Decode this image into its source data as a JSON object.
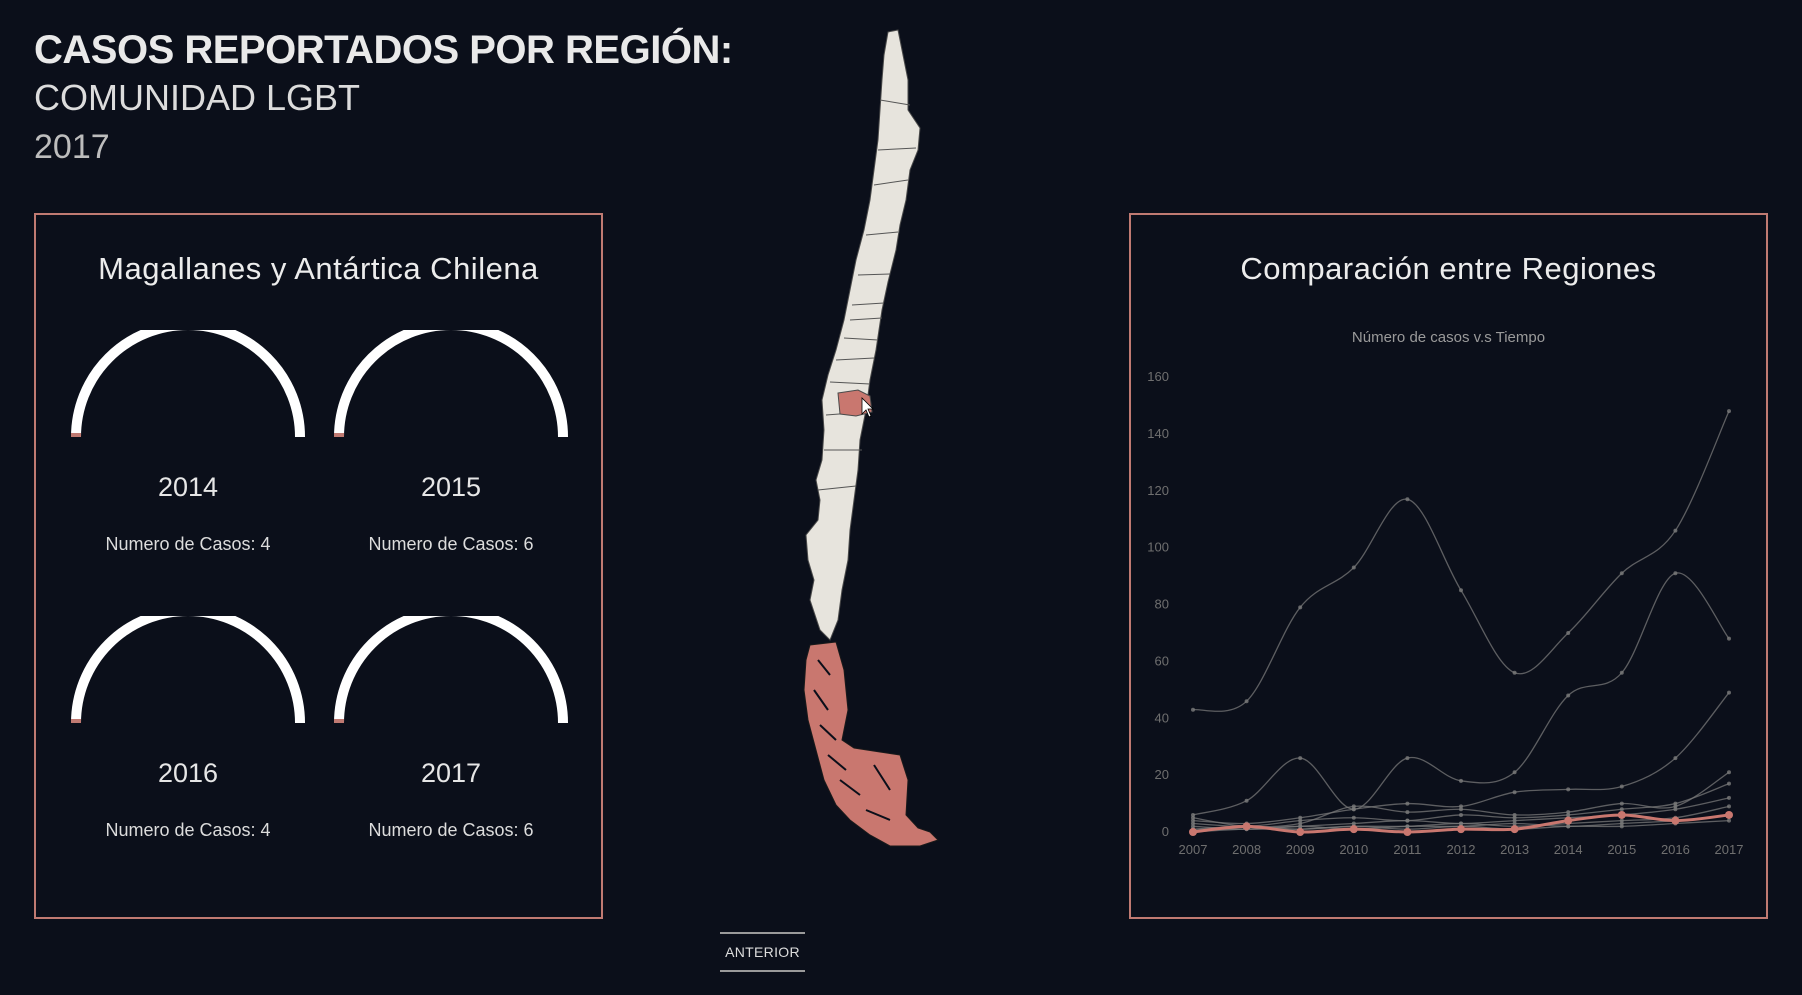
{
  "header": {
    "title": "CASOS REPORTADOS POR REGIÓN:",
    "subtitle": "COMUNIDAD LGBT",
    "year": "2017"
  },
  "left_panel": {
    "region_name": "Magallanes y Antártica Chilena",
    "gauges": [
      {
        "year": "2014",
        "label": "Numero de Casos: 4",
        "cases": 4
      },
      {
        "year": "2015",
        "label": "Numero de Casos: 6",
        "cases": 6
      },
      {
        "year": "2016",
        "label": "Numero de Casos: 4",
        "cases": 4
      },
      {
        "year": "2017",
        "label": "Numero de Casos: 6",
        "cases": 6
      }
    ],
    "accent_color": "#c07a72",
    "arc_color": "#ffffff"
  },
  "map": {
    "highlight_color": "#c9776f",
    "base_color": "#e7e4dd",
    "highlighted_regions": [
      "Magallanes y Antártica Chilena",
      "hovered-central-region"
    ]
  },
  "right_panel": {
    "title": "Comparación entre Regiones"
  },
  "chart_data": {
    "type": "line",
    "title": "Número de casos v.s Tiempo",
    "x": [
      2007,
      2008,
      2009,
      2010,
      2011,
      2012,
      2013,
      2014,
      2015,
      2016,
      2017
    ],
    "ylim": [
      0,
      160
    ],
    "yticks": [
      0,
      20,
      40,
      60,
      80,
      100,
      120,
      140,
      160
    ],
    "grid": false,
    "series": [
      {
        "values": [
          43,
          46,
          79,
          93,
          117,
          85,
          56,
          70,
          91,
          106,
          148
        ]
      },
      {
        "values": [
          6,
          11,
          26,
          8,
          26,
          18,
          21,
          48,
          56,
          91,
          68
        ]
      },
      {
        "values": [
          4,
          3,
          5,
          8,
          10,
          9,
          14,
          15,
          16,
          26,
          49
        ]
      },
      {
        "values": [
          5,
          2,
          3,
          9,
          7,
          8,
          6,
          7,
          10,
          9,
          21
        ]
      },
      {
        "values": [
          3,
          2,
          4,
          5,
          4,
          6,
          5,
          6,
          8,
          10,
          17
        ]
      },
      {
        "values": [
          2,
          1,
          2,
          3,
          4,
          3,
          4,
          5,
          6,
          8,
          12
        ]
      },
      {
        "values": [
          1,
          2,
          1,
          2,
          2,
          3,
          2,
          3,
          4,
          5,
          9
        ]
      },
      {
        "values": [
          1,
          1,
          2,
          1,
          2,
          2,
          3,
          2,
          3,
          4,
          6
        ]
      },
      {
        "values": [
          0,
          1,
          1,
          2,
          1,
          2,
          1,
          2,
          2,
          3,
          4
        ]
      },
      {
        "values": [
          0,
          2,
          0,
          1,
          0,
          1,
          1,
          4,
          6,
          4,
          6
        ],
        "highlight": true
      }
    ],
    "line_color": "#7a7a7a",
    "highlight_color": "#c9776f"
  },
  "footer": {
    "prev_label": "ANTERIOR"
  }
}
